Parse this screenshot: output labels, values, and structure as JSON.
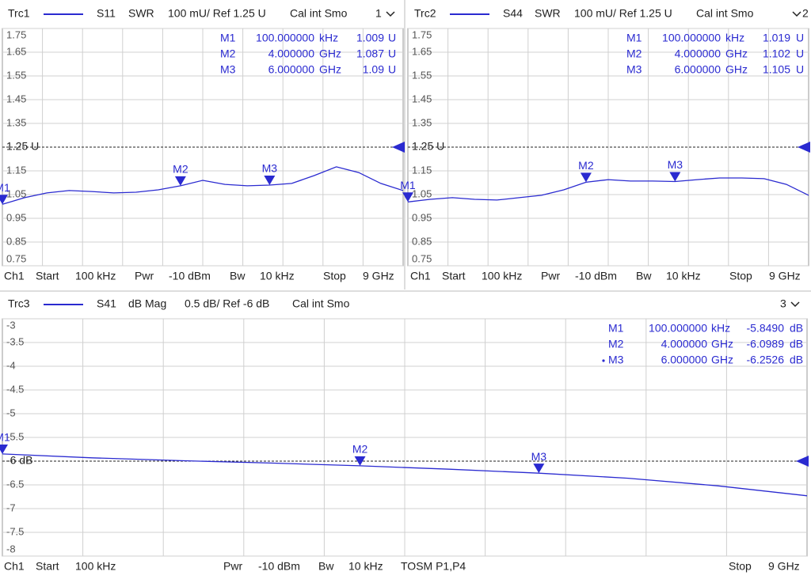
{
  "chart_data": [
    {
      "type": "line",
      "header": {
        "parameter": "S11",
        "format": "SWR",
        "scale": "100 mU/ Ref 1.25 U",
        "cal": "Cal int Smo",
        "channel": "1"
      },
      "footer": [
        "Ch1",
        "Start",
        "100 kHz",
        "Pwr",
        "-10 dBm",
        "Bw",
        "10 kHz",
        "Stop",
        "9 GHz"
      ],
      "x": [
        0.0001,
        0.5,
        1,
        1.5,
        2,
        2.5,
        3,
        3.5,
        4,
        4.5,
        5,
        5.5,
        6,
        6.5,
        7,
        7.5,
        8,
        8.5,
        9
      ],
      "series": [
        {
          "name": "Trc1",
          "color": "#2a2ad0",
          "values": [
            1.009,
            1.037,
            1.057,
            1.067,
            1.063,
            1.057,
            1.06,
            1.07,
            1.087,
            1.11,
            1.093,
            1.087,
            1.09,
            1.097,
            1.13,
            1.167,
            1.143,
            1.097,
            1.067
          ]
        }
      ],
      "xlim": [
        0.0001,
        9
      ],
      "ylim": [
        0.75,
        1.75
      ],
      "yticks": [
        0.75,
        0.85,
        0.95,
        1.05,
        1.15,
        {
          "value": 1.25,
          "label": "1.25 U"
        },
        1.35,
        1.45,
        1.55,
        1.65,
        1.75
      ],
      "grid": true,
      "markers": [
        {
          "name": "M1",
          "x": 0.0001,
          "stimulus": "100.000000",
          "unit": "kHz",
          "value": 1.009,
          "value_unit": "U"
        },
        {
          "name": "M2",
          "x": 4,
          "stimulus": "4.000000",
          "unit": "GHz",
          "value": 1.087,
          "value_unit": "U"
        },
        {
          "name": "M3",
          "x": 6,
          "stimulus": "6.000000",
          "unit": "GHz",
          "value": 1.09,
          "value_unit": "U"
        }
      ]
    },
    {
      "type": "line",
      "header": {
        "parameter": "S44",
        "format": "SWR",
        "scale": "100 mU/ Ref 1.25 U",
        "cal": "Cal int Smo",
        "channel": "2"
      },
      "footer": [
        "Ch1",
        "Start",
        "100 kHz",
        "Pwr",
        "-10 dBm",
        "Bw",
        "10 kHz",
        "Stop",
        "9 GHz"
      ],
      "x": [
        0.0001,
        0.5,
        1,
        1.5,
        2,
        2.5,
        3,
        3.5,
        4,
        4.5,
        5,
        5.5,
        6,
        6.5,
        7,
        7.5,
        8,
        8.5,
        9
      ],
      "series": [
        {
          "name": "Trc2",
          "color": "#2a2ad0",
          "values": [
            1.019,
            1.03,
            1.037,
            1.03,
            1.027,
            1.037,
            1.047,
            1.07,
            1.102,
            1.113,
            1.107,
            1.107,
            1.105,
            1.113,
            1.12,
            1.12,
            1.117,
            1.093,
            1.047
          ]
        }
      ],
      "xlim": [
        0.0001,
        9
      ],
      "ylim": [
        0.75,
        1.75
      ],
      "yticks": [
        0.75,
        0.85,
        0.95,
        1.05,
        1.15,
        {
          "value": 1.25,
          "label": "1.25 U"
        },
        1.35,
        1.45,
        1.55,
        1.65,
        1.75
      ],
      "grid": true,
      "markers": [
        {
          "name": "M1",
          "x": 0.0001,
          "stimulus": "100.000000",
          "unit": "kHz",
          "value": 1.019,
          "value_unit": "U"
        },
        {
          "name": "M2",
          "x": 4,
          "stimulus": "4.000000",
          "unit": "GHz",
          "value": 1.102,
          "value_unit": "U"
        },
        {
          "name": "M3",
          "x": 6,
          "stimulus": "6.000000",
          "unit": "GHz",
          "value": 1.105,
          "value_unit": "U"
        }
      ]
    },
    {
      "type": "line",
      "header": {
        "parameter": "S41",
        "format": "dB Mag",
        "scale": "0.5 dB/ Ref -6 dB",
        "cal": "Cal int Smo",
        "channel": "3"
      },
      "footer": [
        "Ch1",
        "Start",
        "100 kHz",
        "Pwr",
        "-10 dBm",
        "Bw",
        "10 kHz",
        "TOSM P1,P4",
        "Stop",
        "9 GHz"
      ],
      "x": [
        0.0001,
        1,
        2,
        3,
        4,
        5,
        6,
        7,
        8,
        9
      ],
      "series": [
        {
          "name": "Trc3",
          "color": "#2a2ad0",
          "values": [
            -5.849,
            -5.93,
            -5.99,
            -6.04,
            -6.0989,
            -6.17,
            -6.2526,
            -6.36,
            -6.52,
            -6.73
          ]
        }
      ],
      "xlim": [
        0.0001,
        9
      ],
      "ylim": [
        -8,
        -3
      ],
      "yticks": [
        -8,
        -7.5,
        -7,
        -6.5,
        {
          "value": -6,
          "label": "-6 dB"
        },
        -5.5,
        -5,
        -4.5,
        -4,
        -3.5,
        -3
      ],
      "grid": true,
      "markers": [
        {
          "name": "M1",
          "x": 0.0001,
          "stimulus": "100.000000",
          "unit": "kHz",
          "value": -5.849,
          "value_label": "-5.8490",
          "value_unit": "dB"
        },
        {
          "name": "M2",
          "x": 4,
          "stimulus": "4.000000",
          "unit": "GHz",
          "value": -6.0989,
          "value_unit": "dB"
        },
        {
          "name": "M3",
          "x": 6,
          "stimulus": "6.000000",
          "unit": "GHz",
          "value": -6.2526,
          "value_unit": "dB"
        }
      ]
    }
  ]
}
